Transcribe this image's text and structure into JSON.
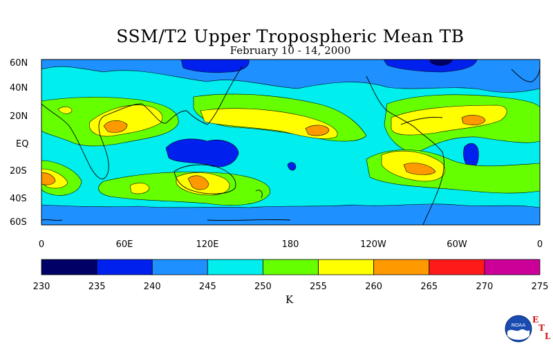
{
  "header": {
    "title": "SSM/T2 Upper Tropospheric Mean TB",
    "subtitle": "February 10 - 14, 2000"
  },
  "map": {
    "lat_labels": [
      "60N",
      "40N",
      "20N",
      "EQ",
      "20S",
      "40S",
      "60S"
    ],
    "lon_labels": [
      "0",
      "60E",
      "120E",
      "180",
      "120W",
      "60W",
      "0"
    ]
  },
  "colorbar": {
    "colors": [
      "#000066",
      "#0020ee",
      "#1e90ff",
      "#00eeee",
      "#66ff00",
      "#ffff00",
      "#ff9900",
      "#ff1a1a",
      "#cc0099"
    ],
    "ticks": [
      "230",
      "235",
      "240",
      "245",
      "250",
      "255",
      "260",
      "265",
      "270",
      "275"
    ],
    "unit": "K"
  },
  "logo": {
    "text": "NOAA",
    "etl": [
      "E",
      "T",
      "L"
    ]
  }
}
